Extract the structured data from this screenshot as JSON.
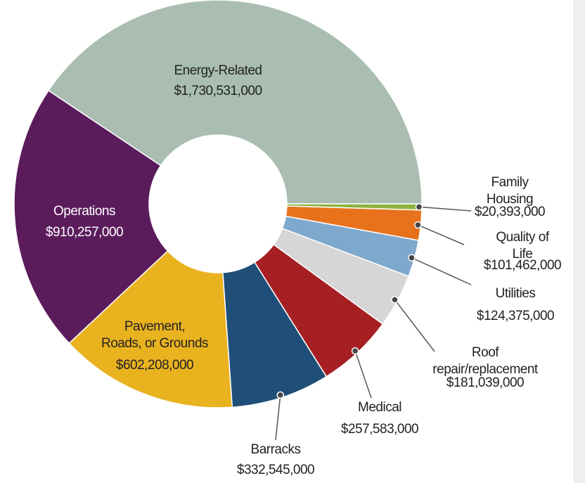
{
  "chart_data": {
    "type": "donut",
    "categories": [
      "Energy-Related",
      "Operations",
      "Pavement,\nRoads, or Grounds",
      "Barracks",
      "Medical",
      "Roof repair/replacement",
      "Utilities",
      "Quality of Life",
      "Family Housing"
    ],
    "values": [
      1730531000,
      910257000,
      602208000,
      332545000,
      257583000,
      181039000,
      124375000,
      101462000,
      20393000
    ],
    "value_labels": [
      "$1,730,531,000",
      "$910,257,000",
      "$602,208,000",
      "$332,545,000",
      "$257,583,000",
      "$181,039,000",
      "$124,375,000",
      "$101,462,000",
      "$20,393,000"
    ],
    "colors": [
      "#a9bdb1",
      "#5b1c5c",
      "#e9b21f",
      "#1f4f78",
      "#a61f22",
      "#d6d6d6",
      "#7ea8cc",
      "#e8721c",
      "#8cb23c"
    ]
  }
}
